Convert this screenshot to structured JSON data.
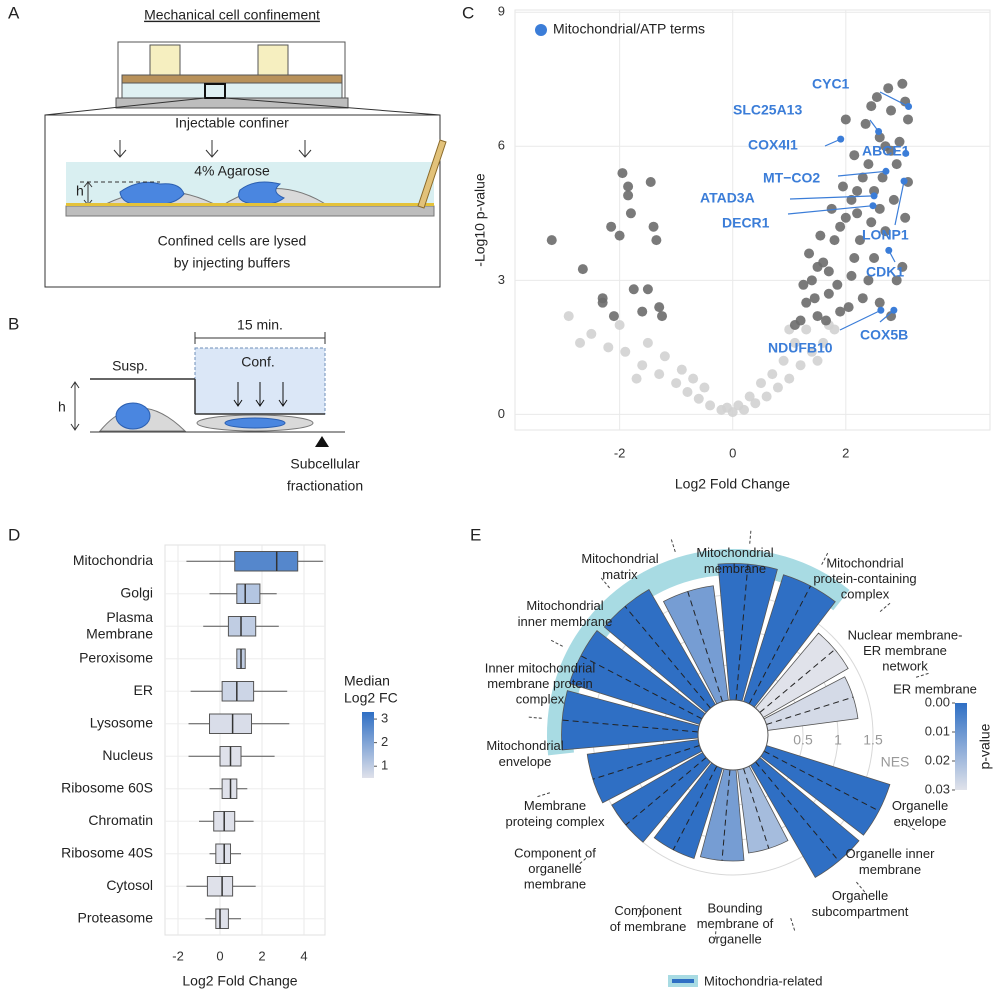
{
  "panels": [
    "A",
    "B",
    "C",
    "D",
    "E"
  ],
  "schematic_a": {
    "title": "Mechanical cell confinement",
    "confiner": "Injectable confiner",
    "agarose": "4% Agarose",
    "height": "h",
    "caption": [
      "Confined cells are lysed",
      "by injecting buffers"
    ]
  },
  "schematic_b": {
    "duration": "15 min.",
    "suspension": "Susp.",
    "confinement": "Conf.",
    "height": "h",
    "caption": [
      "Subcellular",
      "fractionation"
    ]
  },
  "chart_data": [
    {
      "type": "scatter",
      "xlabel": "Log2 Fold Change",
      "ylabel": "-Log10 p-value",
      "xlim": [
        -3.85,
        4.55
      ],
      "ylim": [
        -0.35,
        9.05
      ],
      "xticks": [
        -2,
        0,
        2
      ],
      "yticks": [
        0,
        3,
        6,
        9
      ],
      "grid": true,
      "legend": "top-left",
      "series": [
        {
          "color": "#d2d2d2",
          "x": [
            -2.5,
            -2.2,
            -1.9,
            -1.6,
            -1.3,
            -1.0,
            -0.8,
            -0.6,
            -0.4,
            -0.2,
            0,
            0.2,
            0.4,
            0.6,
            0.8,
            1.0,
            1.2,
            1.4,
            1.6,
            1.8,
            -2.0,
            -1.5,
            -1.2,
            -0.9,
            -0.5,
            0.5,
            0.9,
            1.1,
            1.3,
            1.0,
            -1.7,
            -0.7,
            0.3,
            0.7,
            1.5,
            -2.7,
            -2.9,
            0.1,
            -0.1,
            1.7
          ],
          "y": [
            1.8,
            1.5,
            1.4,
            1.1,
            0.9,
            0.7,
            0.5,
            0.35,
            0.2,
            0.1,
            0.05,
            0.1,
            0.25,
            0.4,
            0.6,
            0.8,
            1.1,
            1.4,
            1.6,
            1.9,
            2.0,
            1.6,
            1.3,
            1.0,
            0.6,
            0.7,
            1.2,
            1.6,
            1.9,
            1.9,
            0.8,
            0.8,
            0.4,
            0.9,
            1.2,
            1.6,
            2.2,
            0.2,
            0.15,
            2.0
          ]
        },
        {
          "color": "#6b6b6b",
          "x": [
            -3.2,
            -2.65,
            -2.3,
            -2.3,
            -2.1,
            -2.0,
            -1.95,
            -1.85,
            -1.8,
            -1.75,
            -1.6,
            -1.5,
            -1.45,
            -1.4,
            -1.35,
            -1.3,
            -1.25,
            -2.15,
            -1.85,
            1.2,
            1.3,
            1.4,
            1.5,
            1.6,
            1.7,
            1.8,
            1.9,
            2.0,
            2.1,
            2.2,
            2.3,
            2.4,
            2.5,
            2.6,
            2.7,
            2.8,
            2.9,
            3.0,
            3.1,
            1.35,
            1.55,
            1.75,
            1.95,
            2.15,
            2.35,
            2.55,
            2.75,
            2.95,
            3.05,
            1.25,
            1.45,
            1.65,
            1.85,
            2.05,
            2.25,
            2.45,
            2.65,
            2.85,
            3.0,
            1.1,
            2.2,
            2.4,
            2.6,
            2.8,
            2.9,
            3.1,
            2.7,
            2.5,
            2.3,
            2.0,
            1.9,
            2.1,
            2.6,
            2.8,
            3.05,
            2.45,
            2.15,
            1.7,
            1.5
          ],
          "y": [
            3.9,
            3.25,
            2.5,
            2.6,
            2.2,
            4.0,
            5.4,
            4.9,
            4.5,
            2.8,
            2.3,
            2.8,
            5.2,
            4.2,
            3.9,
            2.4,
            2.2,
            4.2,
            5.1,
            2.1,
            2.5,
            3.0,
            2.2,
            3.4,
            2.7,
            3.9,
            2.3,
            4.4,
            3.1,
            5.0,
            2.6,
            5.6,
            3.5,
            6.2,
            4.1,
            6.8,
            3.0,
            7.4,
            5.2,
            3.6,
            4.0,
            4.6,
            5.1,
            5.8,
            6.5,
            7.1,
            7.3,
            6.1,
            4.4,
            2.9,
            2.6,
            2.1,
            2.9,
            2.4,
            3.9,
            4.3,
            5.3,
            4.8,
            3.3,
            2.0,
            4.5,
            3.0,
            2.5,
            2.2,
            5.6,
            6.6,
            6.0,
            5.0,
            5.3,
            6.6,
            4.2,
            4.8,
            4.6,
            5.9,
            7.0,
            6.9,
            3.5,
            3.2,
            3.3
          ]
        },
        {
          "name": "Mitochondrial/ATP terms",
          "color": "#3b7dd8",
          "labels": [
            "CYC1",
            "SLC25A13",
            "COX4I1",
            "ABCE1",
            "MT−CO2",
            "ATAD3A",
            "DECR1",
            "LONP1",
            "CDK1",
            "COX5B",
            "NDUFB10"
          ],
          "x": [
            3.11,
            2.58,
            1.91,
            3.06,
            2.71,
            2.5,
            2.48,
            3.03,
            2.76,
            2.85,
            2.62
          ],
          "y": [
            6.89,
            6.33,
            6.16,
            5.84,
            5.44,
            4.89,
            4.67,
            5.22,
            3.67,
            2.33,
            2.33
          ]
        }
      ]
    },
    {
      "type": "box",
      "xlabel": "Log2 Fold Change",
      "xlim": [
        -2.62,
        5.0
      ],
      "xticks": [
        -2,
        0,
        2,
        4
      ],
      "grid": true,
      "categories": [
        "Mitochondria",
        "Golgi",
        "Plasma\nMembrane",
        "Peroxisome",
        "ER",
        "Lysosome",
        "Nucleus",
        "Ribosome 60S",
        "Chromatin",
        "Ribosome 40S",
        "Cytosol",
        "Proteasome"
      ],
      "min": [
        -1.6,
        -0.5,
        -0.8,
        0.8,
        -1.4,
        -1.5,
        -1.5,
        -0.5,
        -1.0,
        -0.5,
        -1.6,
        -0.7
      ],
      "q1": [
        0.7,
        0.8,
        0.4,
        0.8,
        0.1,
        -0.5,
        0.0,
        0.1,
        -0.3,
        -0.2,
        -0.6,
        -0.2
      ],
      "median": [
        2.7,
        1.2,
        1.0,
        1.0,
        0.8,
        0.6,
        0.5,
        0.5,
        0.2,
        0.2,
        0.1,
        0.0
      ],
      "q3": [
        3.7,
        1.9,
        1.7,
        1.2,
        1.6,
        1.5,
        1.0,
        0.8,
        0.7,
        0.5,
        0.6,
        0.4
      ],
      "max": [
        4.9,
        2.7,
        2.8,
        1.2,
        3.2,
        3.3,
        2.6,
        1.3,
        1.6,
        1.0,
        1.7,
        1.0
      ],
      "colorbar": {
        "title": "Median\nLog2 FC",
        "clim": [
          0.5,
          3.3
        ],
        "ticks": [
          1,
          2,
          3
        ],
        "colors": [
          "#dfe1ea",
          "#2f6fc4"
        ]
      }
    },
    {
      "type": "radial_bar",
      "rlabel": "NES",
      "rticks": [
        0.5,
        1,
        1.5
      ],
      "categories": [
        "Mitochondrial\nmembrane",
        "Mitochondrial\nprotein-containing\ncomplex",
        "Nuclear membrane-\nER membrane\nnetwork",
        "ER membrane",
        "Organelle\nenvelope",
        "Organelle inner\nmembrane",
        "Organelle\nsubcompartment",
        "Bounding\nmembrane of\norganelle",
        "Component\nof membrane",
        "Component of\norganelle\nmembrane",
        "Membrane\nproteing complex",
        "Mitochondrial\nenvelope",
        "Inner mitochondrial\nmembrane protein\ncomplex",
        "Mitochondrial\ninner membrane",
        "Mitochondrial\nmatrix"
      ],
      "values": [
        1.95,
        1.9,
        1.4,
        1.3,
        1.85,
        1.85,
        1.2,
        1.3,
        1.35,
        1.5,
        1.6,
        1.95,
        1.95,
        1.9,
        1.65
      ],
      "pvalues": [
        0,
        0,
        0.03,
        0.028,
        0,
        0,
        0.02,
        0.012,
        0,
        0,
        0,
        0,
        0,
        0,
        0.012
      ],
      "mito_related": [
        true,
        true,
        false,
        false,
        false,
        false,
        false,
        false,
        false,
        false,
        false,
        true,
        true,
        true,
        true
      ],
      "highlight_label": "Mitochondria-related",
      "highlight_color": "#a8dbe3",
      "colorbar": {
        "title": "p-value",
        "clim": [
          0,
          0.03
        ],
        "ticks": [
          {
            "value": 0,
            "label": "0.00"
          },
          {
            "value": 0.01,
            "label": "0.01"
          },
          {
            "value": 0.02,
            "label": "0.02"
          },
          {
            "value": 0.03,
            "label": "0.03"
          }
        ],
        "colors": [
          "#2f6fc4",
          "#e0e2ea"
        ]
      }
    }
  ]
}
